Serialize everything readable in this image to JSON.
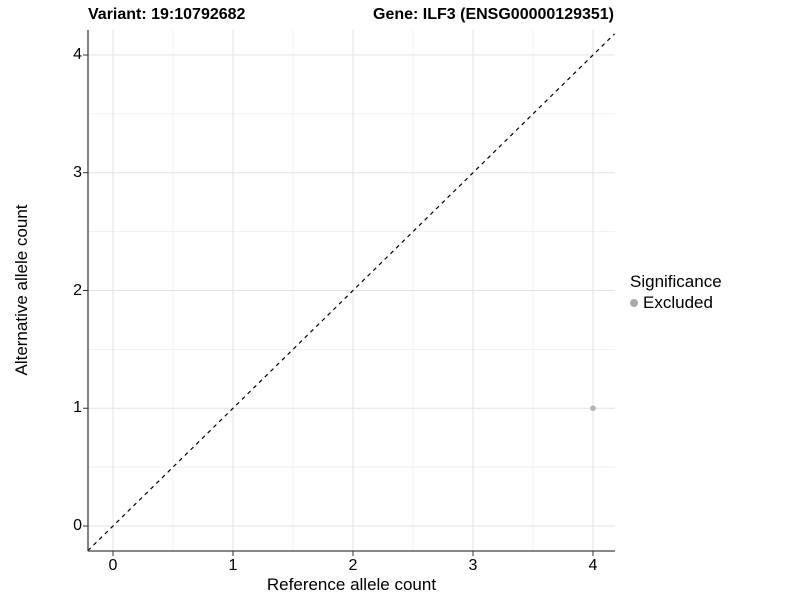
{
  "titles": {
    "variant": "Variant: 19:10792682",
    "gene": "Gene: ILF3 (ENSG00000129351)"
  },
  "chart_data": {
    "type": "scatter",
    "title_left": "Variant: 19:10792682",
    "title_right": "Gene: ILF3 (ENSG00000129351)",
    "xlabel": "Reference allele count",
    "ylabel": "Alternative allele count",
    "x_ticks": [
      0,
      1,
      2,
      3,
      4
    ],
    "y_ticks": [
      0,
      1,
      2,
      3,
      4
    ],
    "xlim": [
      -0.21,
      4.18
    ],
    "ylim": [
      -0.21,
      4.21
    ],
    "grid": "major-and-minor",
    "reference_line": {
      "type": "identity y=x",
      "style": "dashed",
      "color": "#000000"
    },
    "series": [
      {
        "name": "Excluded",
        "color": "#b3b3b3",
        "points": [
          {
            "x": 4,
            "y": 1
          }
        ]
      }
    ],
    "legend": {
      "title": "Significance",
      "position": "right",
      "entries": [
        {
          "label": "Excluded",
          "color": "#aaaaaa"
        }
      ]
    },
    "colors": {
      "grid_major": "#e3e3e3",
      "grid_minor": "#f1f1f1",
      "axis_line": "#404040",
      "tick_mark": "#333333",
      "text": "#000000"
    }
  }
}
